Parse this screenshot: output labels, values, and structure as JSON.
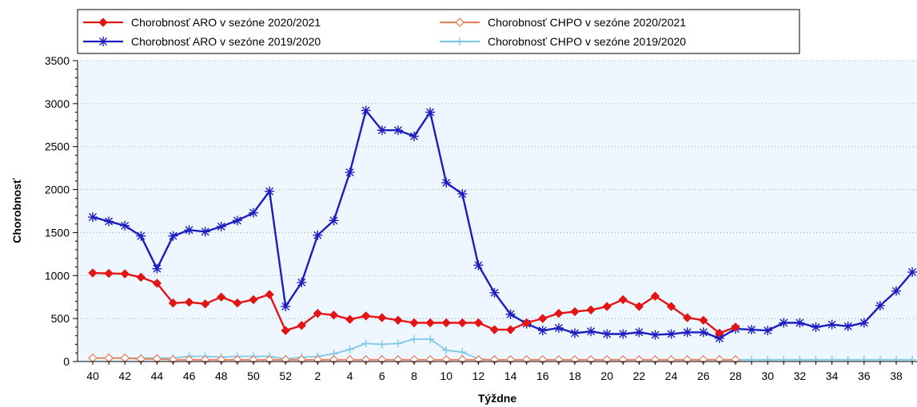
{
  "chart_data": {
    "type": "line",
    "title": "",
    "xlabel": "Týždne",
    "ylabel": "Chorobnosť",
    "ylim": [
      0,
      3500
    ],
    "yticks": [
      0,
      500,
      1000,
      1500,
      2000,
      2500,
      3000,
      3500
    ],
    "background": "#eef7ff",
    "grid": "dotted-horizontal",
    "legend_position": "top",
    "categories": [
      "40",
      "41",
      "42",
      "43",
      "44",
      "45",
      "46",
      "47",
      "48",
      "49",
      "50",
      "51",
      "52",
      "1",
      "2",
      "3",
      "4",
      "5",
      "6",
      "7",
      "8",
      "9",
      "10",
      "11",
      "12",
      "13",
      "14",
      "15",
      "16",
      "17",
      "18",
      "19",
      "20",
      "21",
      "22",
      "23",
      "24",
      "25",
      "26",
      "27",
      "28",
      "29",
      "30",
      "31",
      "32",
      "33",
      "34",
      "35",
      "36",
      "37",
      "38",
      "39"
    ],
    "tick_labels": [
      "40",
      "42",
      "44",
      "46",
      "48",
      "50",
      "52",
      "2",
      "4",
      "6",
      "8",
      "10",
      "12",
      "14",
      "16",
      "18",
      "20",
      "22",
      "24",
      "26",
      "28",
      "30",
      "32",
      "34",
      "36",
      "38"
    ],
    "series": [
      {
        "name": "Chorobnosť ARO v sezóne 2020/2021",
        "color": "#e31414",
        "marker": "diamond-filled",
        "values": [
          1030,
          1025,
          1020,
          980,
          910,
          680,
          690,
          670,
          750,
          680,
          720,
          780,
          360,
          420,
          560,
          540,
          490,
          530,
          510,
          480,
          450,
          450,
          450,
          450,
          450,
          370,
          370,
          450,
          500,
          560,
          580,
          600,
          640,
          720,
          640,
          760,
          640,
          510,
          480,
          330,
          400,
          null,
          null,
          null,
          null,
          null,
          null,
          null,
          null,
          null,
          null,
          null
        ]
      },
      {
        "name": "Chorobnosť CHPO v sezóne 2020/2021",
        "color": "#e8825a",
        "marker": "diamond-open",
        "values": [
          40,
          40,
          40,
          30,
          30,
          20,
          20,
          20,
          20,
          20,
          20,
          20,
          20,
          20,
          20,
          20,
          20,
          20,
          20,
          20,
          20,
          20,
          20,
          20,
          20,
          20,
          20,
          20,
          20,
          20,
          20,
          20,
          20,
          20,
          20,
          20,
          20,
          20,
          20,
          20,
          20,
          null,
          null,
          null,
          null,
          null,
          null,
          null,
          null,
          null,
          null,
          null
        ]
      },
      {
        "name": "Chorobnosť ARO v sezóne 2019/2020",
        "color": "#1c1cc0",
        "marker": "asterisk",
        "values": [
          1680,
          1630,
          1580,
          1460,
          1080,
          1460,
          1530,
          1510,
          1570,
          1640,
          1730,
          1980,
          640,
          920,
          1470,
          1640,
          2200,
          2920,
          2690,
          2690,
          2620,
          2900,
          2080,
          1950,
          1120,
          800,
          550,
          440,
          360,
          390,
          330,
          350,
          320,
          320,
          340,
          310,
          320,
          340,
          340,
          270,
          380,
          370,
          360,
          450,
          450,
          400,
          430,
          410,
          450,
          650,
          820,
          1040
        ]
      },
      {
        "name": "Chorobnosť CHPO v sezóne 2019/2020",
        "color": "#7fc8e6",
        "marker": "plus",
        "values": [
          40,
          40,
          40,
          40,
          40,
          40,
          60,
          60,
          50,
          60,
          60,
          60,
          30,
          50,
          60,
          90,
          140,
          210,
          200,
          210,
          260,
          260,
          130,
          110,
          30,
          20,
          20,
          20,
          20,
          20,
          20,
          20,
          20,
          20,
          20,
          20,
          20,
          20,
          20,
          20,
          20,
          20,
          20,
          20,
          20,
          20,
          20,
          20,
          20,
          20,
          20,
          20
        ]
      }
    ]
  }
}
